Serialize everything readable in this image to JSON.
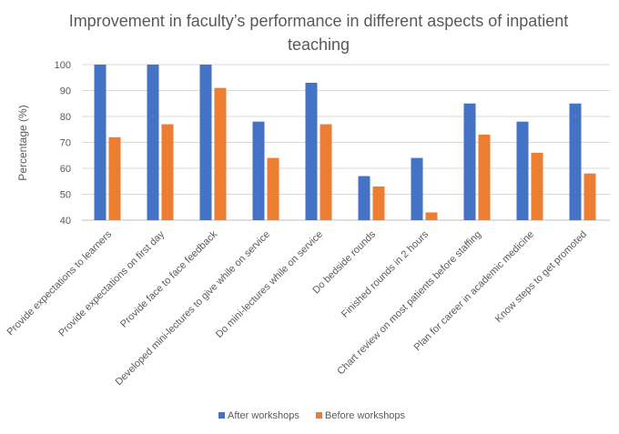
{
  "chart_data": {
    "type": "bar",
    "title": "Improvement in faculty’s performance in different aspects of inpatient teaching",
    "ylabel": "Percentage (%)",
    "xlabel": "",
    "ylim": [
      40,
      100
    ],
    "yticks": [
      40,
      50,
      60,
      70,
      80,
      90,
      100
    ],
    "grid": true,
    "legend": "bottom",
    "categories": [
      "Provide expectations to learners",
      "Provide expectations on first day",
      "Provide face to face feedback",
      "Developed mini-lectures to give while on service",
      "Do mini-lectures while on service",
      "Do bedside rounds",
      "Finished rounds in 2 hours",
      "Chart review on most patients before staffing",
      "Plan for career in academic medicine",
      "Know steps to get promoted"
    ],
    "series": [
      {
        "name": "After workshops",
        "color": "#4472C4",
        "values": [
          100,
          100,
          100,
          78,
          93,
          57,
          64,
          85,
          78,
          85
        ]
      },
      {
        "name": "Before workshops",
        "color": "#ED7D31",
        "values": [
          72,
          77,
          91,
          64,
          77,
          53,
          43,
          73,
          66,
          58
        ]
      }
    ]
  }
}
